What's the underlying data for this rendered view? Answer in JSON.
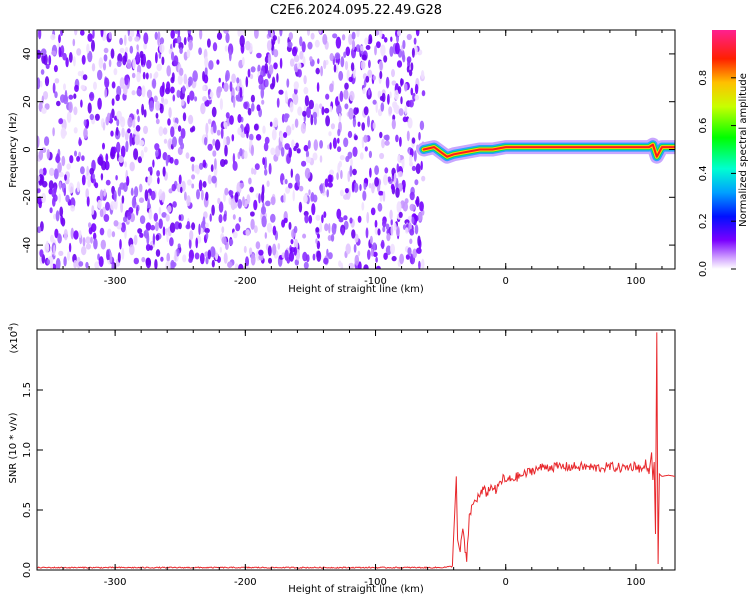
{
  "title": "C2E6.2024.095.22.49.G28",
  "chart_data": [
    {
      "type": "heatmap",
      "name": "spectrogram",
      "xlabel": "Height of straight line (km)",
      "ylabel": "Frequency (Hz)",
      "xlim": [
        -360,
        130
      ],
      "ylim": [
        -50,
        50
      ],
      "xticks": [
        -300,
        -200,
        -100,
        0,
        100
      ],
      "yticks": [
        -40,
        -20,
        0,
        20,
        40
      ],
      "noise_region_x": [
        -360,
        -63
      ],
      "signal_track": {
        "x": [
          -63,
          -55,
          -50,
          -45,
          -40,
          -30,
          -20,
          -10,
          0,
          20,
          60,
          90,
          110,
          113,
          116,
          120,
          130
        ],
        "y": [
          0,
          1,
          -1,
          -3,
          -2,
          -1,
          0,
          0,
          1,
          1,
          1,
          1,
          1,
          2,
          -3,
          1,
          1
        ]
      },
      "colorbar": {
        "label": "Normalized spectral amplitude",
        "range": [
          0.0,
          1.0
        ],
        "ticks": [
          "0.0",
          "0.2",
          "0.4",
          "0.6",
          "0.8"
        ]
      }
    },
    {
      "type": "line",
      "name": "snr",
      "xlabel": "Height of straight line (km)",
      "ylabel": "SNR (10 * v/v)",
      "scale_label": "(x10",
      "scale_exp": "4",
      "scale_close": ")",
      "xlim": [
        -360,
        130
      ],
      "ylim": [
        0,
        2.0
      ],
      "xticks": [
        -300,
        -200,
        -100,
        0,
        100
      ],
      "yticks": [
        "0.0",
        "0.5",
        "1.0",
        "1.5"
      ],
      "color": "#e8282c",
      "x": [
        -360,
        -300,
        -200,
        -100,
        -50,
        -41,
        -38,
        -37,
        -35,
        -33,
        -30,
        -28,
        -25,
        -22,
        -20,
        -17,
        -15,
        -12,
        -10,
        -7,
        -5,
        -2,
        0,
        5,
        10,
        15,
        20,
        30,
        40,
        50,
        60,
        70,
        80,
        90,
        100,
        105,
        108,
        110,
        112,
        113,
        114,
        115,
        116,
        117,
        118,
        120,
        125,
        130
      ],
      "y": [
        0.02,
        0.02,
        0.02,
        0.02,
        0.02,
        0.03,
        0.78,
        0.25,
        0.15,
        0.35,
        0.05,
        0.45,
        0.55,
        0.6,
        0.62,
        0.67,
        0.64,
        0.68,
        0.7,
        0.65,
        0.72,
        0.76,
        0.74,
        0.76,
        0.78,
        0.8,
        0.83,
        0.86,
        0.86,
        0.86,
        0.86,
        0.85,
        0.86,
        0.85,
        0.87,
        0.83,
        0.9,
        0.8,
        0.98,
        0.75,
        0.9,
        0.3,
        1.98,
        0.05,
        0.8,
        0.78,
        0.79,
        0.78
      ]
    }
  ]
}
